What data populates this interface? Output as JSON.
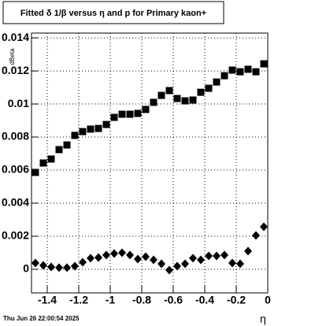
{
  "chart_data": {
    "type": "scatter",
    "title": "Fitted δ 1/β versus η and p for Primary kaon+",
    "y_label": "dBeta",
    "x_label": "η",
    "timestamp": "Thu Jun 26 22:00:54 2025",
    "xlim": [
      -1.5,
      0
    ],
    "ylim": [
      -0.00143,
      0.01429
    ],
    "xticks": [
      -1.4,
      -1.2,
      -1,
      -0.8,
      -0.6,
      -0.4,
      -0.2,
      0
    ],
    "yticks": [
      0,
      0.002,
      0.004,
      0.006,
      0.008,
      0.01,
      0.012,
      0.014
    ],
    "grid": true,
    "x": [
      -1.475,
      -1.425,
      -1.375,
      -1.325,
      -1.275,
      -1.225,
      -1.175,
      -1.125,
      -1.075,
      -1.025,
      -0.975,
      -0.925,
      -0.875,
      -0.825,
      -0.775,
      -0.725,
      -0.675,
      -0.625,
      -0.575,
      -0.525,
      -0.475,
      -0.425,
      -0.375,
      -0.325,
      -0.275,
      -0.225,
      -0.175,
      -0.125,
      -0.075,
      -0.025
    ],
    "series": [
      {
        "color": "#000000",
        "marker": "square",
        "values": [
          0.00586,
          0.00643,
          0.00667,
          0.00724,
          0.00752,
          0.0081,
          0.00833,
          0.00848,
          0.00852,
          0.00876,
          0.00919,
          0.00938,
          0.00938,
          0.00943,
          0.00967,
          0.0101,
          0.01052,
          0.01081,
          0.01033,
          0.01019,
          0.01024,
          0.01071,
          0.01095,
          0.01133,
          0.01171,
          0.01205,
          0.01195,
          0.0121,
          0.01195,
          0.01243
        ]
      },
      {
        "color": "#000000",
        "marker": "diamond",
        "values": [
          0.00038,
          0.00024,
          0.00014,
          0.0001,
          0.0001,
          0.00019,
          0.00043,
          0.00067,
          0.00071,
          0.00086,
          0.00095,
          0.001,
          0.00086,
          0.00062,
          0.00076,
          0.00057,
          0.00033,
          -5e-05,
          0.00019,
          0.00033,
          0.00067,
          0.00057,
          0.00081,
          0.00081,
          0.00086,
          0.00038,
          0.00033,
          0.0011,
          0.00205,
          0.00257
        ]
      }
    ]
  }
}
